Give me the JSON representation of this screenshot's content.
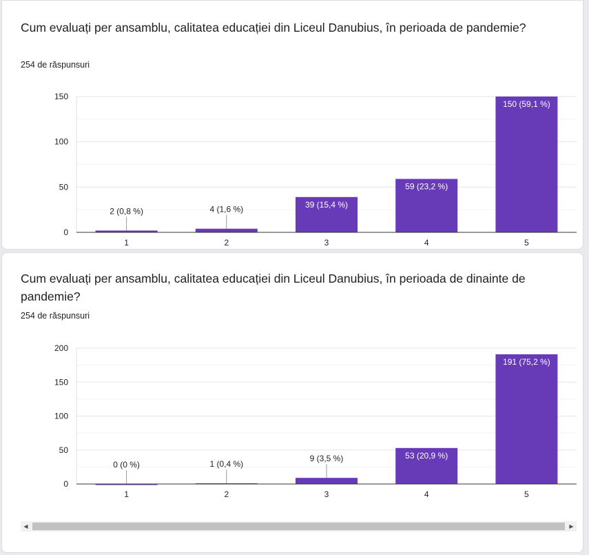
{
  "cards": [
    {
      "title": "Cum evaluați per ansamblu, calitatea educației din Liceul Danubius, în perioada de pandemie?",
      "responses": "254 de răspunsuri",
      "chart_data": {
        "type": "bar",
        "categories": [
          "1",
          "2",
          "3",
          "4",
          "5"
        ],
        "values": [
          2,
          4,
          39,
          59,
          150
        ],
        "data_labels": [
          "2 (0,8 %)",
          "4 (1,6 %)",
          "39 (15,4 %)",
          "59 (23,2 %)",
          "150 (59,1 %)"
        ],
        "yticks": [
          0,
          50,
          100,
          150
        ],
        "ylim": [
          0,
          150
        ],
        "grid": true,
        "bar_color": "#673ab7"
      }
    },
    {
      "title": "Cum evaluați per ansamblu, calitatea educației din Liceul Danubius, în perioada de dinainte de pandemie?",
      "responses": "254 de răspunsuri",
      "chart_data": {
        "type": "bar",
        "categories": [
          "1",
          "2",
          "3",
          "4",
          "5"
        ],
        "values": [
          0,
          1,
          9,
          53,
          191
        ],
        "data_labels": [
          "0 (0 %)",
          "1 (0,4 %)",
          "9 (3,5 %)",
          "53 (20,9 %)",
          "191 (75,2 %)"
        ],
        "yticks": [
          0,
          50,
          100,
          150,
          200
        ],
        "ylim": [
          0,
          200
        ],
        "grid": true,
        "bar_color": "#673ab7"
      }
    }
  ],
  "scrollbar": {
    "left_arrow_icon": "arrow-left-icon",
    "right_arrow_icon": "arrow-right-icon",
    "left_glyph": "◀",
    "right_glyph": "▶"
  }
}
